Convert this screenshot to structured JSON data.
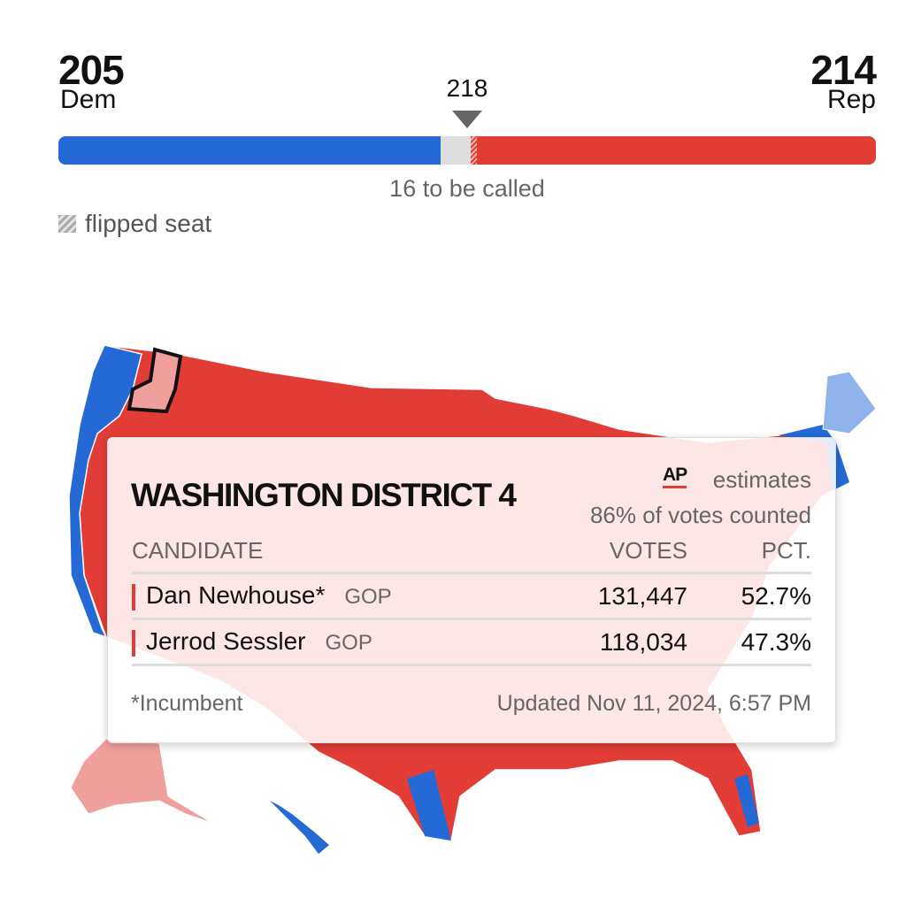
{
  "seats": {
    "dem": {
      "count": "205",
      "label": "Dem",
      "seats": 205
    },
    "rep": {
      "count": "214",
      "label": "Rep",
      "seats": 214
    },
    "uncalled": 16,
    "majority": "218",
    "to_be_called": "16 to be called",
    "flipped_legend": "flipped seat"
  },
  "colors": {
    "dem": "#2469d6",
    "rep": "#e23c36",
    "rep_light": "#f0a09c",
    "dem_light": "#8fb3ea",
    "uncalled": "#dedede"
  },
  "tooltip": {
    "title": "WASHINGTON DISTRICT 4",
    "source_logo": "AP",
    "source_label": "estimates",
    "votes_counted": "86% of votes counted",
    "columns": [
      "CANDIDATE",
      "VOTES",
      "PCT."
    ],
    "rows": [
      {
        "name": "Dan Newhouse*",
        "party": "GOP",
        "votes": "131,447",
        "pct": "52.7%"
      },
      {
        "name": "Jerrod Sessler",
        "party": "GOP",
        "votes": "118,034",
        "pct": "47.3%"
      }
    ],
    "footnote": "*Incumbent",
    "updated": "Updated Nov 11, 2024, 6:57 PM"
  }
}
